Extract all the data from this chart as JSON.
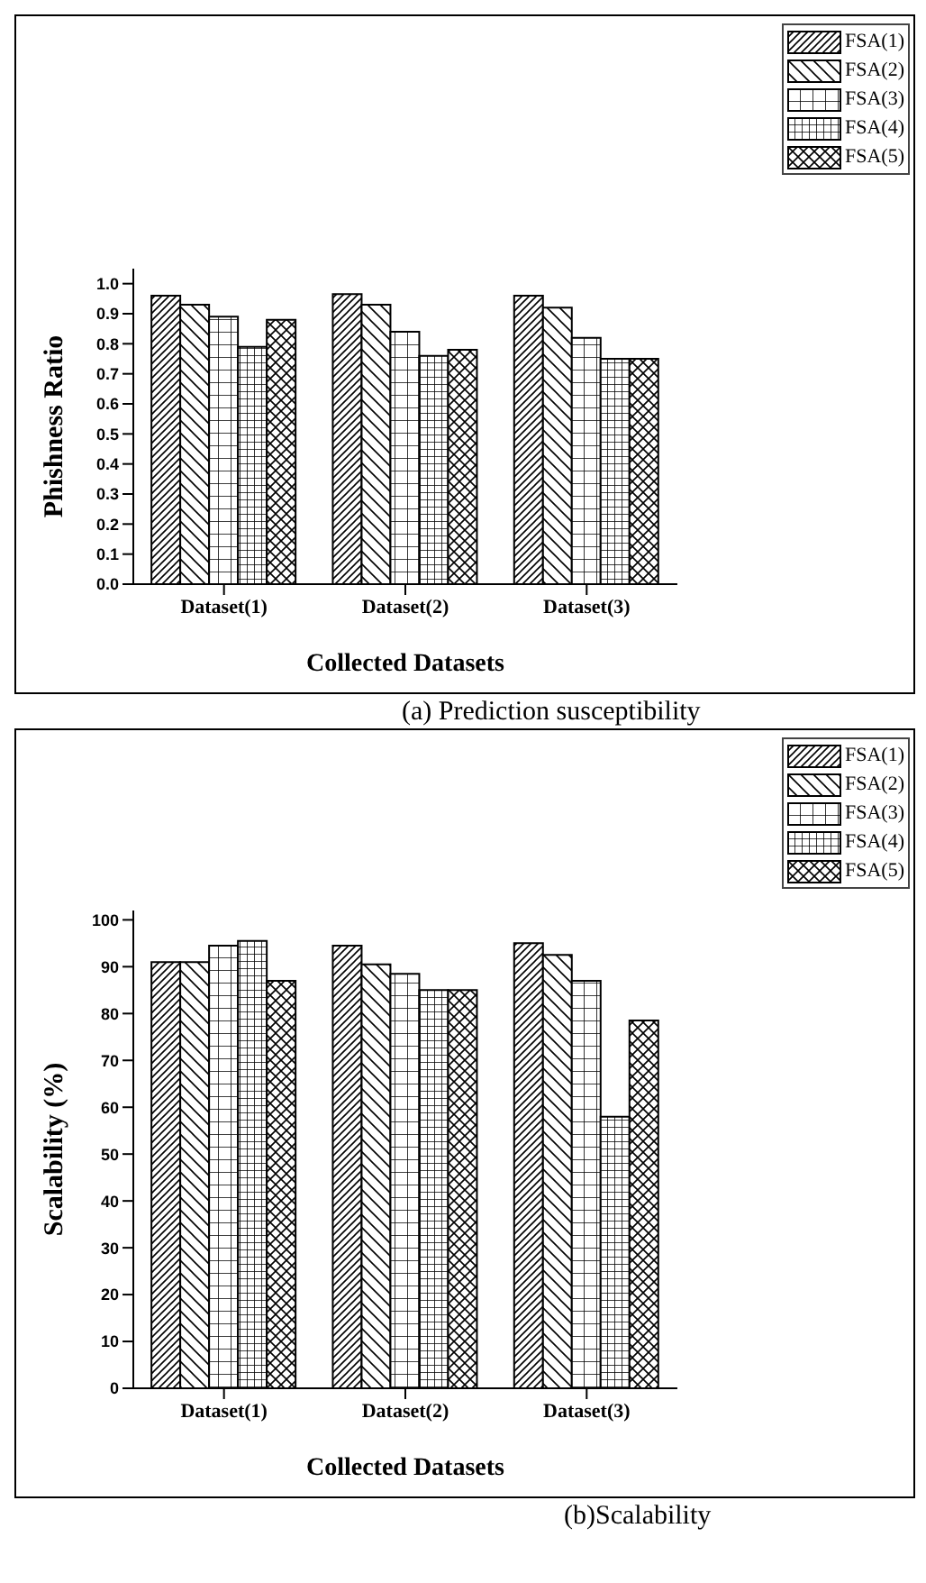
{
  "chart_data": [
    {
      "type": "bar",
      "categories": [
        "Dataset(1)",
        "Dataset(2)",
        "Dataset(3)"
      ],
      "xlabel": "Collected Datasets",
      "ylabel": "Phishness Ratio",
      "ylim": [
        0,
        1.05
      ],
      "yticks": [
        {
          "value": 0,
          "label": "0.0"
        },
        {
          "value": 0.1,
          "label": "0.1"
        },
        {
          "value": 0.2,
          "label": "0.2"
        },
        {
          "value": 0.3,
          "label": "0.3"
        },
        {
          "value": 0.4,
          "label": "0.4"
        },
        {
          "value": 0.5,
          "label": "0.5"
        },
        {
          "value": 0.6,
          "label": "0.6"
        },
        {
          "value": 0.7,
          "label": "0.7"
        },
        {
          "value": 0.8,
          "label": "0.8"
        },
        {
          "value": 0.9,
          "label": "0.9"
        },
        {
          "value": 1,
          "label": "1.0"
        }
      ],
      "legend": "top right",
      "grid": false,
      "annotations": [
        "(a) Prediction susceptibility"
      ],
      "series": [
        {
          "name": "FSA(1)",
          "color": "#000000",
          "values": [
            0.96,
            0.965,
            0.96
          ]
        },
        {
          "name": "FSA(2)",
          "color": "#000000",
          "values": [
            0.93,
            0.93,
            0.92
          ]
        },
        {
          "name": "FSA(3)",
          "color": "#000000",
          "values": [
            0.89,
            0.84,
            0.82
          ]
        },
        {
          "name": "FSA(4)",
          "color": "#000000",
          "values": [
            0.79,
            0.76,
            0.75
          ]
        },
        {
          "name": "FSA(5)",
          "color": "#000000",
          "values": [
            0.88,
            0.78,
            0.75
          ]
        }
      ]
    },
    {
      "type": "bar",
      "categories": [
        "Dataset(1)",
        "Dataset(2)",
        "Dataset(3)"
      ],
      "xlabel": "Collected Datasets",
      "ylabel": "Scalability (%)",
      "ylim": [
        0,
        102
      ],
      "yticks": [
        0,
        10,
        20,
        30,
        40,
        50,
        60,
        70,
        80,
        90,
        100
      ],
      "legend": "top right",
      "grid": false,
      "annotations": [
        "(b)Scalability"
      ],
      "series": [
        {
          "name": "FSA(1)",
          "color": "#000000",
          "values": [
            91,
            94.5,
            95
          ]
        },
        {
          "name": "FSA(2)",
          "color": "#000000",
          "values": [
            91,
            90.5,
            92.5
          ]
        },
        {
          "name": "FSA(3)",
          "color": "#000000",
          "values": [
            94.5,
            88.5,
            87
          ]
        },
        {
          "name": "FSA(4)",
          "color": "#000000",
          "values": [
            95.5,
            85,
            58
          ]
        },
        {
          "name": "FSA(5)",
          "color": "#000000",
          "values": [
            87,
            85,
            78.5
          ]
        }
      ]
    }
  ]
}
